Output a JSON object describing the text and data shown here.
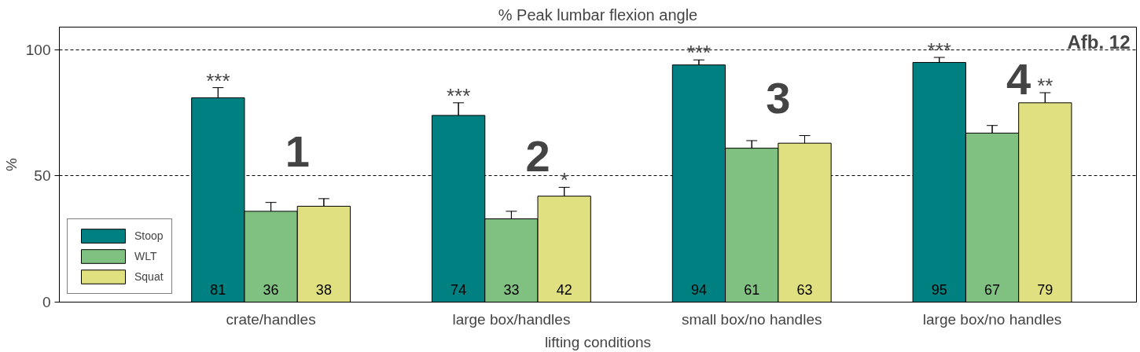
{
  "chart_data": {
    "type": "bar",
    "title": "% Peak lumbar flexion angle",
    "xlabel": "lifting conditions",
    "ylabel": "%",
    "categories": [
      "crate/handles",
      "large box/handles",
      "small box/no handles",
      "large box/no handles"
    ],
    "series": [
      {
        "name": "Stoop",
        "color": "#008080",
        "values": [
          81,
          74,
          94,
          95
        ],
        "errors": [
          4,
          5,
          2,
          2
        ]
      },
      {
        "name": "WLT",
        "color": "#80c080",
        "values": [
          36,
          33,
          61,
          67
        ],
        "errors": [
          3.5,
          3,
          3,
          3
        ]
      },
      {
        "name": "Squat",
        "color": "#e0e080",
        "values": [
          38,
          42,
          63,
          79
        ],
        "errors": [
          3,
          3.5,
          3,
          4
        ]
      }
    ],
    "ylim": [
      0,
      109
    ],
    "yticks": [
      0,
      50,
      100
    ],
    "grid": "y",
    "legend": "bottom left",
    "data_labels": true,
    "annotations": [
      "***",
      "***",
      "*",
      "***",
      "***",
      "**",
      "1",
      "2",
      "3",
      "4",
      "Afb. 12"
    ]
  }
}
